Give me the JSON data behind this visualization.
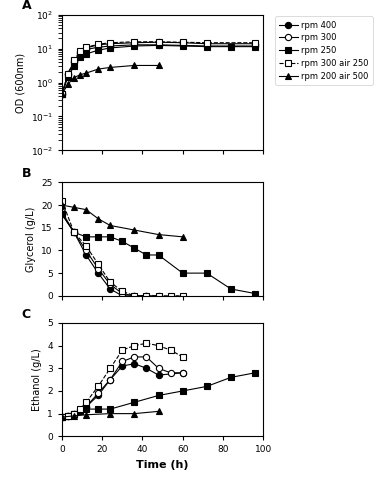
{
  "legend_labels": [
    "rpm 400",
    "rpm 300",
    "rpm 250",
    "rpm 300 air 250",
    "rpm 200 air 500"
  ],
  "series": {
    "rpm400": {
      "A_time": [
        0,
        3,
        6,
        9,
        12,
        18,
        24,
        36,
        48,
        60,
        72,
        96
      ],
      "A_od": [
        0.45,
        1.8,
        4.0,
        7.5,
        9.5,
        11,
        12,
        13,
        13,
        12.5,
        12,
        12
      ],
      "B_time": [
        0,
        6,
        12,
        18,
        24,
        30,
        36,
        42
      ],
      "B_glyc": [
        18,
        14,
        9,
        5,
        1.5,
        0,
        0,
        0
      ],
      "C_time": [
        0,
        3,
        6,
        9,
        12,
        18,
        24,
        30,
        36,
        42,
        48,
        60
      ],
      "C_eth": [
        0.85,
        0.9,
        1.0,
        1.1,
        1.3,
        1.8,
        2.5,
        3.1,
        3.2,
        3.0,
        2.7,
        2.8
      ],
      "marker": "o",
      "mfc": "black",
      "mec": "black",
      "ls": "-"
    },
    "rpm300": {
      "A_time": [
        0,
        3,
        6,
        9,
        12,
        18,
        24,
        36,
        48,
        60,
        72,
        96
      ],
      "A_od": [
        0.45,
        1.8,
        4.2,
        8.0,
        10.5,
        13,
        14,
        15,
        15.5,
        15,
        14,
        14
      ],
      "B_time": [
        0,
        6,
        12,
        18,
        24,
        30,
        36,
        42,
        48
      ],
      "B_glyc": [
        18.5,
        14,
        10,
        6,
        2.5,
        0.5,
        0,
        0,
        0
      ],
      "C_time": [
        0,
        3,
        6,
        9,
        12,
        18,
        24,
        30,
        36,
        42,
        48,
        54,
        60
      ],
      "C_eth": [
        0.85,
        0.9,
        1.0,
        1.1,
        1.3,
        1.9,
        2.5,
        3.3,
        3.5,
        3.5,
        3.0,
        2.8,
        2.8
      ],
      "marker": "o",
      "mfc": "white",
      "mec": "black",
      "ls": "-"
    },
    "rpm250": {
      "A_time": [
        0,
        3,
        6,
        9,
        12,
        18,
        24,
        36,
        48,
        60,
        72,
        84,
        96
      ],
      "A_od": [
        0.45,
        1.5,
        3.0,
        5.5,
        7.0,
        9.0,
        10.5,
        12,
        12.5,
        12,
        11.5,
        11.5,
        11.5
      ],
      "B_time": [
        0,
        6,
        12,
        18,
        24,
        30,
        36,
        42,
        48,
        60,
        72,
        84,
        96
      ],
      "B_glyc": [
        18,
        14,
        13,
        13,
        13,
        12,
        10.5,
        9,
        9,
        5,
        5,
        1.5,
        0.5
      ],
      "C_time": [
        0,
        3,
        6,
        9,
        12,
        18,
        24,
        36,
        48,
        60,
        72,
        84,
        96
      ],
      "C_eth": [
        0.85,
        0.9,
        1.0,
        1.1,
        1.2,
        1.2,
        1.2,
        1.5,
        1.8,
        2.0,
        2.2,
        2.6,
        2.8
      ],
      "marker": "s",
      "mfc": "black",
      "mec": "black",
      "ls": "-"
    },
    "rpm300_air250": {
      "A_time": [
        0,
        3,
        6,
        9,
        12,
        18,
        24,
        36,
        48,
        60,
        72,
        96
      ],
      "A_od": [
        0.45,
        1.8,
        4.5,
        8.5,
        11,
        13.5,
        15,
        16,
        16,
        15.5,
        15,
        15
      ],
      "B_time": [
        0,
        6,
        12,
        18,
        24,
        30,
        36,
        42,
        48,
        54,
        60
      ],
      "B_glyc": [
        21,
        14,
        11,
        7,
        3,
        1,
        0,
        0,
        0,
        0,
        0
      ],
      "C_time": [
        0,
        3,
        6,
        9,
        12,
        18,
        24,
        30,
        36,
        42,
        48,
        54,
        60
      ],
      "C_eth": [
        0.85,
        0.9,
        1.0,
        1.2,
        1.5,
        2.2,
        3.0,
        3.8,
        4.0,
        4.1,
        4.0,
        3.8,
        3.5
      ],
      "marker": "s",
      "mfc": "white",
      "mec": "black",
      "ls": "--"
    },
    "rpm200_air500": {
      "A_time": [
        0,
        3,
        6,
        9,
        12,
        18,
        24,
        36,
        48
      ],
      "A_od": [
        0.45,
        0.9,
        1.4,
        1.7,
        1.9,
        2.5,
        2.8,
        3.2,
        3.2
      ],
      "B_time": [
        0,
        6,
        12,
        18,
        24,
        36,
        48,
        60
      ],
      "B_glyc": [
        20,
        19.5,
        19,
        17,
        15.5,
        14.5,
        13.5,
        13
      ],
      "C_time": [
        0,
        6,
        12,
        24,
        36,
        48
      ],
      "C_eth": [
        0.85,
        0.9,
        0.95,
        1.0,
        1.0,
        1.1
      ],
      "marker": "^",
      "mfc": "black",
      "mec": "black",
      "ls": "-"
    }
  },
  "panel_A": {
    "ylabel": "OD (600nm)",
    "ylim_log": [
      0.01,
      100
    ]
  },
  "panel_B": {
    "ylabel": "Glycerol (g/L)",
    "ylim": [
      0,
      25
    ],
    "yticks": [
      0,
      5,
      10,
      15,
      20,
      25
    ]
  },
  "panel_C": {
    "ylabel": "Ethanol (g/L)",
    "ylim": [
      0,
      5
    ],
    "yticks": [
      0,
      1,
      2,
      3,
      4,
      5
    ]
  },
  "xlabel": "Time (h)",
  "xlim": [
    0,
    100
  ],
  "xticks": [
    0,
    20,
    40,
    60,
    80,
    100
  ]
}
